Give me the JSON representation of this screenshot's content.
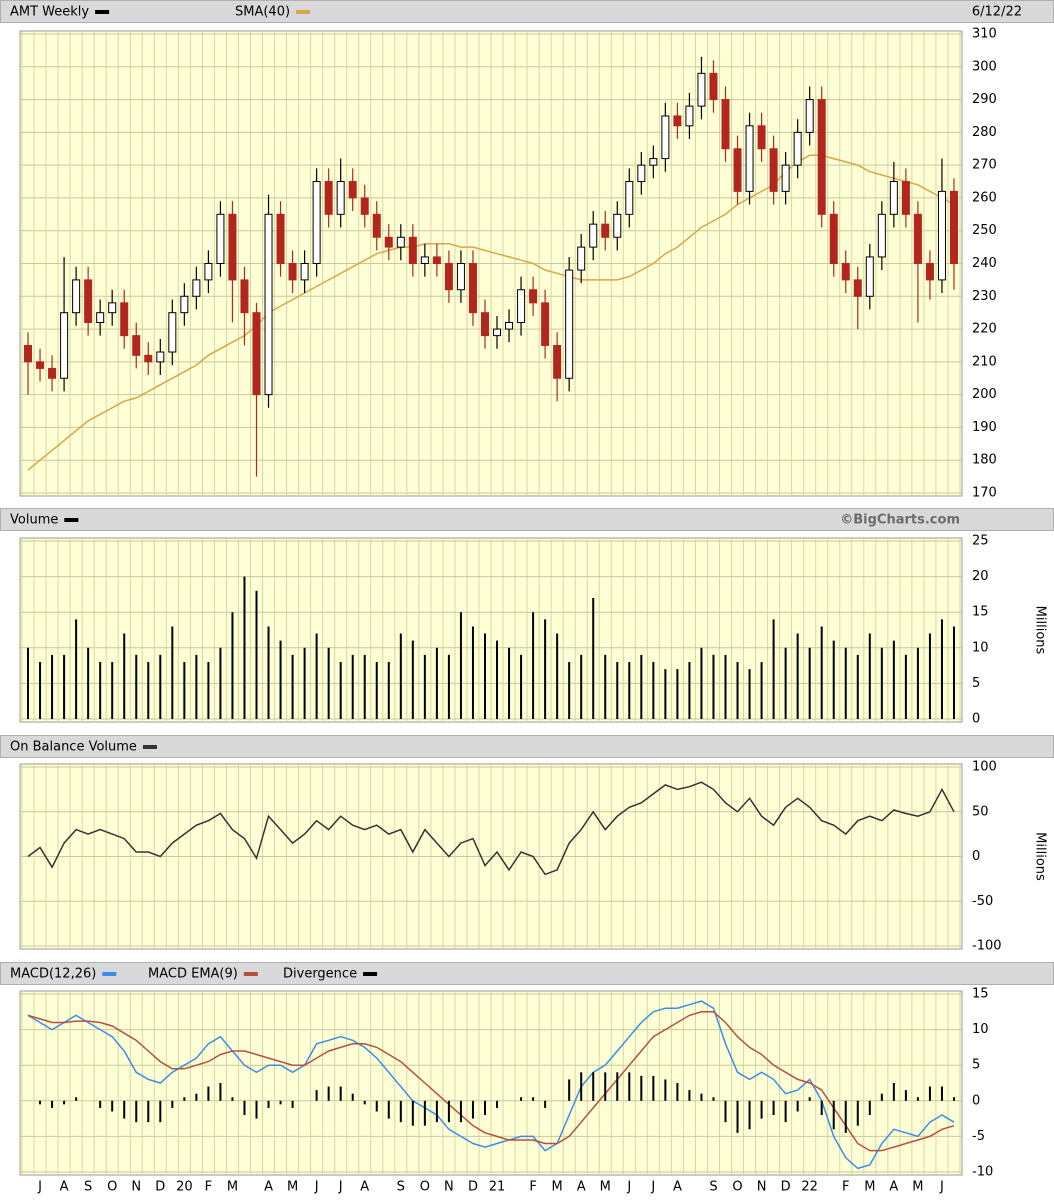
{
  "chart_data": [
    {
      "type": "candlestick",
      "name": "AMT Weekly",
      "color": "#000000",
      "date": "6/12/22",
      "up_color": "#000000",
      "down_color": "#b3261e",
      "open": [
        215,
        210,
        208,
        205,
        225,
        235,
        222,
        225,
        228,
        218,
        212,
        210,
        213,
        225,
        230,
        235,
        240,
        255,
        235,
        225,
        200,
        255,
        240,
        235,
        240,
        265,
        255,
        265,
        260,
        255,
        248,
        245,
        248,
        240,
        242,
        240,
        232,
        240,
        225,
        218,
        220,
        222,
        232,
        228,
        215,
        205,
        238,
        245,
        252,
        248,
        255,
        265,
        270,
        272,
        285,
        282,
        288,
        298,
        290,
        275,
        262,
        282,
        275,
        262,
        270,
        280,
        290,
        255,
        240,
        235,
        230,
        242,
        255,
        265,
        255,
        240,
        235,
        262
      ],
      "high": [
        219,
        214,
        212,
        242,
        239,
        239,
        229,
        232,
        232,
        222,
        216,
        217,
        229,
        234,
        239,
        244,
        259,
        259,
        239,
        228,
        261,
        259,
        244,
        244,
        269,
        269,
        272,
        269,
        264,
        259,
        252,
        252,
        252,
        246,
        246,
        244,
        244,
        244,
        229,
        224,
        226,
        236,
        236,
        232,
        219,
        242,
        249,
        256,
        256,
        259,
        269,
        274,
        276,
        289,
        289,
        292,
        303,
        302,
        294,
        279,
        286,
        286,
        279,
        274,
        284,
        294,
        294,
        259,
        244,
        239,
        246,
        259,
        271,
        269,
        259,
        244,
        272,
        266
      ],
      "low": [
        200,
        204,
        201,
        201,
        221,
        218,
        218,
        221,
        214,
        208,
        206,
        206,
        209,
        221,
        226,
        231,
        236,
        222,
        215,
        175,
        196,
        236,
        231,
        231,
        236,
        251,
        251,
        256,
        251,
        244,
        241,
        241,
        236,
        236,
        236,
        228,
        228,
        221,
        214,
        214,
        216,
        218,
        224,
        211,
        198,
        201,
        234,
        241,
        244,
        244,
        251,
        261,
        266,
        268,
        278,
        278,
        284,
        286,
        271,
        258,
        258,
        271,
        258,
        258,
        266,
        276,
        251,
        236,
        231,
        220,
        226,
        238,
        251,
        251,
        222,
        229,
        231,
        232
      ],
      "close": [
        210,
        208,
        205,
        225,
        235,
        222,
        225,
        228,
        218,
        212,
        210,
        213,
        225,
        230,
        235,
        240,
        255,
        235,
        225,
        200,
        255,
        240,
        235,
        240,
        265,
        255,
        265,
        260,
        255,
        248,
        245,
        248,
        240,
        242,
        240,
        232,
        240,
        225,
        218,
        220,
        222,
        232,
        228,
        215,
        205,
        238,
        245,
        252,
        248,
        255,
        265,
        270,
        272,
        285,
        282,
        288,
        298,
        290,
        275,
        262,
        282,
        275,
        262,
        270,
        280,
        290,
        255,
        240,
        235,
        230,
        242,
        255,
        265,
        255,
        240,
        235,
        262,
        240
      ],
      "series": [
        {
          "name": "SMA(40)",
          "color": "#d9a54a",
          "values": [
            177,
            180,
            183,
            186,
            189,
            192,
            194,
            196,
            198,
            199,
            201,
            203,
            205,
            207,
            209,
            212,
            214,
            216,
            218,
            221,
            225,
            227,
            229,
            231,
            233,
            235,
            237,
            239,
            241,
            243,
            244,
            245,
            245,
            246,
            246,
            246,
            245,
            245,
            244,
            243,
            242,
            241,
            240,
            238,
            237,
            236,
            235,
            235,
            235,
            235,
            236,
            238,
            240,
            243,
            245,
            248,
            251,
            253,
            255,
            258,
            260,
            262,
            264,
            268,
            271,
            273,
            273,
            272,
            271,
            270,
            268,
            267,
            266,
            265,
            264,
            262,
            260,
            258
          ]
        }
      ],
      "ylim": [
        170,
        310
      ],
      "yticks": [
        170,
        180,
        190,
        200,
        210,
        220,
        230,
        240,
        250,
        260,
        270,
        280,
        290,
        300,
        310
      ],
      "grid": true
    },
    {
      "type": "bar",
      "title": "Volume",
      "color": "#000000",
      "credit": "©BigCharts.com",
      "ylabel": "Millions",
      "values": [
        10,
        8,
        9,
        9,
        14,
        10,
        8,
        8,
        12,
        9,
        8,
        9,
        13,
        8,
        9,
        8,
        10,
        15,
        20,
        18,
        13,
        11,
        9,
        10,
        12,
        10,
        8,
        9,
        9,
        8,
        8,
        12,
        11,
        9,
        10,
        9,
        15,
        13,
        12,
        11,
        10,
        9,
        15,
        14,
        12,
        8,
        9,
        17,
        9,
        8,
        8,
        9,
        8,
        7,
        7,
        8,
        10,
        9,
        9,
        8,
        7,
        8,
        14,
        10,
        12,
        10,
        13,
        11,
        10,
        9,
        12,
        10,
        11,
        9,
        10,
        12,
        14,
        13
      ],
      "ylim": [
        0,
        25
      ],
      "yticks": [
        0,
        5,
        10,
        15,
        20,
        25
      ],
      "grid": true
    },
    {
      "type": "line",
      "title": "On Balance Volume",
      "color": "#333333",
      "ylabel": "Millions",
      "values": [
        0,
        10,
        -12,
        15,
        30,
        25,
        30,
        25,
        20,
        5,
        5,
        0,
        15,
        25,
        35,
        40,
        48,
        30,
        20,
        -2,
        45,
        30,
        15,
        25,
        40,
        30,
        45,
        35,
        30,
        35,
        25,
        30,
        5,
        30,
        15,
        0,
        15,
        20,
        -10,
        5,
        -15,
        5,
        0,
        -20,
        -15,
        15,
        30,
        50,
        30,
        45,
        55,
        60,
        70,
        80,
        75,
        78,
        83,
        75,
        60,
        50,
        65,
        45,
        35,
        55,
        65,
        55,
        40,
        35,
        25,
        40,
        45,
        40,
        52,
        48,
        45,
        50,
        75,
        50
      ],
      "ylim": [
        -100,
        100
      ],
      "yticks": [
        -100,
        -50,
        0,
        50,
        100
      ],
      "grid": true
    },
    {
      "type": "line",
      "categories": [
        null,
        "J",
        null,
        "A",
        null,
        "S",
        null,
        "O",
        null,
        "N",
        null,
        "D",
        null,
        "20",
        null,
        "F",
        null,
        "M",
        null,
        null,
        "A",
        null,
        "M",
        null,
        "J",
        null,
        "J",
        null,
        "A",
        null,
        null,
        "S",
        null,
        "O",
        null,
        "N",
        null,
        "D",
        null,
        "21",
        null,
        null,
        "F",
        null,
        "M",
        null,
        "A",
        null,
        "M",
        null,
        "J",
        null,
        "J",
        null,
        "A",
        null,
        null,
        "S",
        null,
        "O",
        null,
        "N",
        null,
        "D",
        null,
        "22",
        null,
        null,
        "F",
        null,
        "M",
        null,
        "A",
        null,
        "M",
        null,
        "J",
        null
      ],
      "series": [
        {
          "name": "MACD(12,26)",
          "color": "#3a8ee6",
          "kind": "line",
          "values": [
            12,
            11,
            10,
            11,
            12,
            11,
            10,
            9,
            7,
            4,
            3,
            2.5,
            4,
            5,
            6,
            8,
            9,
            7,
            5,
            4,
            5,
            5,
            4,
            5,
            8,
            8.5,
            9,
            8.5,
            7.5,
            6,
            4,
            2,
            0,
            -1,
            -2,
            -4,
            -5,
            -6,
            -6.5,
            -6,
            -5.5,
            -5,
            -5,
            -7,
            -6,
            -2,
            2,
            4,
            5,
            7,
            9,
            11,
            12.5,
            13,
            13,
            13.5,
            14,
            13,
            8,
            4,
            3,
            4,
            3,
            1,
            1.5,
            3,
            0,
            -5,
            -8,
            -9.5,
            -9,
            -6,
            -4,
            -4.5,
            -5,
            -3,
            -2,
            -3
          ]
        },
        {
          "name": "MACD EMA(9)",
          "color": "#b5503f",
          "kind": "line",
          "values": [
            12,
            11.5,
            11,
            11,
            11.2,
            11.2,
            11,
            10.5,
            9.5,
            8.5,
            7,
            5.5,
            4.5,
            4.5,
            5,
            5.5,
            6.5,
            7,
            7,
            6.5,
            6,
            5.5,
            5,
            5,
            6,
            7,
            7.5,
            8,
            8,
            7.5,
            6.5,
            5.5,
            4,
            2.5,
            1,
            -0.5,
            -2,
            -3.5,
            -4.5,
            -5,
            -5.5,
            -5.5,
            -5.5,
            -6,
            -6,
            -5,
            -3,
            -1,
            1,
            3,
            5,
            7,
            9,
            10,
            11,
            12,
            12.5,
            12.5,
            11,
            9,
            7.5,
            6.5,
            5,
            4,
            3,
            2.5,
            1.5,
            -1,
            -3.5,
            -6,
            -7,
            -7,
            -6.5,
            -6,
            -5.5,
            -5,
            -4,
            -3.5
          ]
        },
        {
          "name": "Divergence",
          "color": "#000000",
          "kind": "bar",
          "values": [
            0,
            -0.5,
            -1,
            -0.5,
            0.5,
            0,
            -1,
            -1.5,
            -2.5,
            -3,
            -3,
            -3,
            -1,
            0.5,
            1,
            2,
            2.5,
            0.5,
            -2,
            -2.5,
            -1,
            -0.5,
            -1,
            0,
            1.5,
            2,
            2,
            1,
            -0.5,
            -1.5,
            -2.5,
            -3,
            -3.5,
            -3.5,
            -3,
            -3,
            -3,
            -2.5,
            -2,
            -1,
            0,
            0.5,
            0.5,
            -1,
            0,
            3,
            4,
            4,
            4,
            4,
            4,
            3.5,
            3.5,
            3,
            2.5,
            1.5,
            1,
            0.5,
            -3,
            -4.5,
            -4,
            -2.5,
            -2,
            -3,
            -1.5,
            0.5,
            -2,
            -4,
            -4.5,
            -3.5,
            -2,
            1,
            2.5,
            1.5,
            0.5,
            2,
            2,
            0.5
          ]
        }
      ],
      "ylim": [
        -10,
        15
      ],
      "yticks": [
        -10,
        -5,
        0,
        5,
        10,
        15
      ],
      "grid": true
    }
  ]
}
